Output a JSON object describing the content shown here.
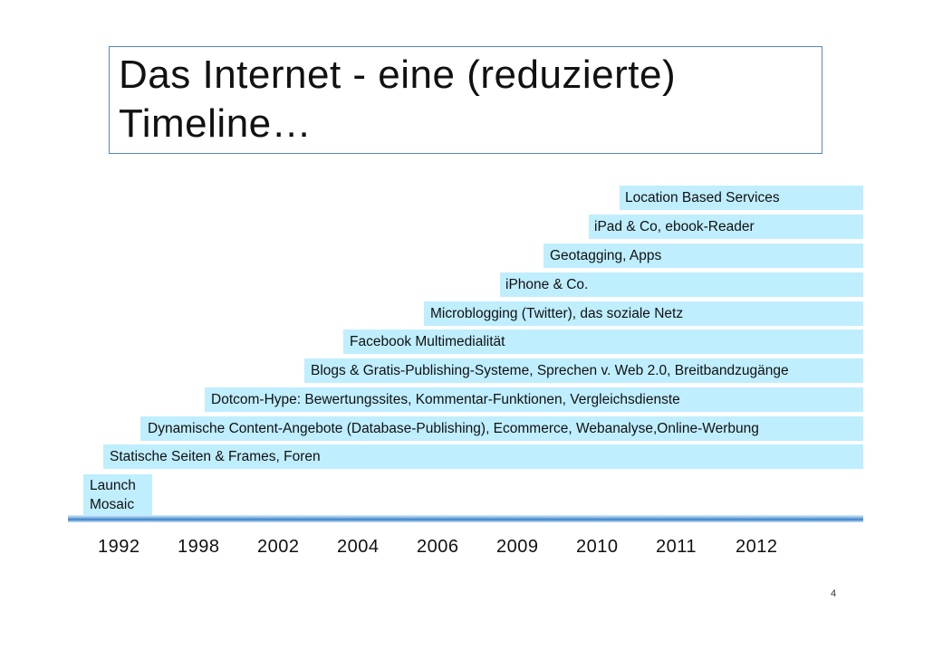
{
  "slide": {
    "title_line1": "Das Internet - eine (reduzierte)",
    "title_line2": "Timeline…",
    "page_number": "4"
  },
  "bars": [
    "Location Based Services",
    "iPad & Co, ebook-Reader",
    "Geotagging, Apps",
    "iPhone & Co.",
    "Microblogging (Twitter), das soziale Netz",
    "Facebook Multimedialität",
    "Blogs & Gratis-Publishing-Systeme, Sprechen v. Web 2.0, Breitbandzugänge",
    "Dotcom-Hype: Bewertungssites, Kommentar-Funktionen, Vergleichsdienste",
    "Dynamische Content-Angebote (Database-Publishing), Ecommerce, Webanalyse,Online-Werbung",
    "Statische Seiten & Frames, Foren"
  ],
  "launch": {
    "line1": "Launch",
    "line2": "Mosaic"
  },
  "years": [
    "1992",
    "1998",
    "2002",
    "2004",
    "2006",
    "2009",
    "2010",
    "2011",
    "2012"
  ],
  "colors": {
    "bar_fill": "#bfeeff",
    "title_border": "#5b86b8",
    "axis": "#3c7fc8"
  }
}
